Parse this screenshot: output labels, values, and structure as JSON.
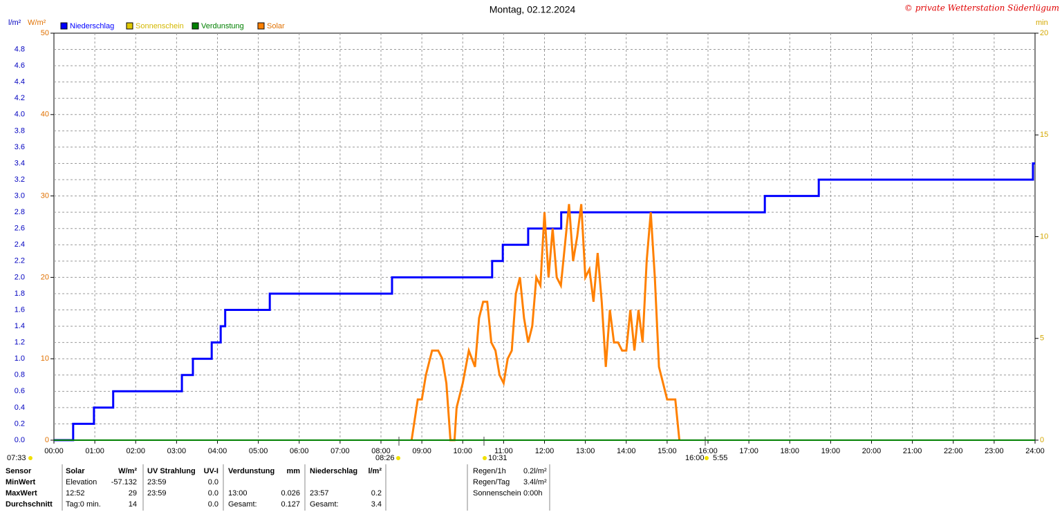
{
  "chart_data": {
    "type": "line",
    "title": "Montag, 02.12.2024",
    "copyright": "© private Wetterstation Süderlügum",
    "y_unit": "l/m²",
    "y2_unit": "W/m²",
    "y3_unit": "min",
    "legend": [
      {
        "name": "Niederschlag",
        "color": "#0000ff"
      },
      {
        "name": "Sonnenschein",
        "color": "#e0c800"
      },
      {
        "name": "Verdunstung",
        "color": "#008000"
      },
      {
        "name": "Solar",
        "color": "#ff8000"
      }
    ],
    "xlim": [
      0,
      24
    ],
    "xticks": [
      {
        "value": 0,
        "label": "00:00"
      },
      {
        "value": 1,
        "label": "01:00"
      },
      {
        "value": 2,
        "label": "02:00"
      },
      {
        "value": 3,
        "label": "03:00"
      },
      {
        "value": 4,
        "label": "04:00"
      },
      {
        "value": 5,
        "label": "05:00"
      },
      {
        "value": 6,
        "label": "06:00"
      },
      {
        "value": 7,
        "label": "07:00"
      },
      {
        "value": 8,
        "label": "08:00"
      },
      {
        "value": 9,
        "label": "09:00"
      },
      {
        "value": 10,
        "label": "10:00"
      },
      {
        "value": 11,
        "label": "11:00"
      },
      {
        "value": 12,
        "label": "12:00"
      },
      {
        "value": 13,
        "label": "13:00"
      },
      {
        "value": 14,
        "label": "14:00"
      },
      {
        "value": 15,
        "label": "15:00"
      },
      {
        "value": 16,
        "label": "16:00"
      },
      {
        "value": 17,
        "label": "17:00"
      },
      {
        "value": 18,
        "label": "18:00"
      },
      {
        "value": 19,
        "label": "19:00"
      },
      {
        "value": 20,
        "label": "20:00"
      },
      {
        "value": 21,
        "label": "21:00"
      },
      {
        "value": 22,
        "label": "22:00"
      },
      {
        "value": 23,
        "label": "23:00"
      },
      {
        "value": 24,
        "label": "24:00"
      }
    ],
    "ylim": [
      0,
      5
    ],
    "yticks": [
      {
        "value": 0,
        "label": "0.0"
      },
      {
        "value": 0.2,
        "label": "0.2"
      },
      {
        "value": 0.4,
        "label": "0.4"
      },
      {
        "value": 0.6,
        "label": "0.6"
      },
      {
        "value": 0.8,
        "label": "0.8"
      },
      {
        "value": 1,
        "label": "1.0"
      },
      {
        "value": 1.2,
        "label": "1.2"
      },
      {
        "value": 1.4,
        "label": "1.4"
      },
      {
        "value": 1.6,
        "label": "1.6"
      },
      {
        "value": 1.8,
        "label": "1.8"
      },
      {
        "value": 2,
        "label": "2.0"
      },
      {
        "value": 2.2,
        "label": "2.2"
      },
      {
        "value": 2.4,
        "label": "2.4"
      },
      {
        "value": 2.6,
        "label": "2.6"
      },
      {
        "value": 2.8,
        "label": "2.8"
      },
      {
        "value": 3,
        "label": "3.0"
      },
      {
        "value": 3.2,
        "label": "3.2"
      },
      {
        "value": 3.4,
        "label": "3.4"
      },
      {
        "value": 3.6,
        "label": "3.6"
      },
      {
        "value": 3.8,
        "label": "3.8"
      },
      {
        "value": 4,
        "label": "4.0"
      },
      {
        "value": 4.2,
        "label": "4.2"
      },
      {
        "value": 4.4,
        "label": "4.4"
      },
      {
        "value": 4.6,
        "label": "4.6"
      },
      {
        "value": 4.8,
        "label": "4.8"
      }
    ],
    "y2lim": [
      0,
      50
    ],
    "y2ticks": [
      0,
      10,
      20,
      30,
      40,
      50
    ],
    "y3lim": [
      0,
      20
    ],
    "y3ticks": [
      0,
      5,
      10,
      15,
      20
    ],
    "grid": true,
    "series": [
      {
        "name": "Niederschlag",
        "color": "#0000ff",
        "x": [
          0,
          0.47,
          0.47,
          0.98,
          0.98,
          1.45,
          1.45,
          3.13,
          3.13,
          3.4,
          3.4,
          3.86,
          3.86,
          4.08,
          4.08,
          4.19,
          4.19,
          5.28,
          5.28,
          8.27,
          8.27,
          10.72,
          10.72,
          10.98,
          10.98,
          11.6,
          11.6,
          12.41,
          12.41,
          17.39,
          17.39,
          18.71,
          18.71,
          23.95,
          23.95,
          24
        ],
        "values": [
          0,
          0,
          0.2,
          0.2,
          0.4,
          0.4,
          0.6,
          0.6,
          0.8,
          0.8,
          1,
          1,
          1.2,
          1.2,
          1.4,
          1.4,
          1.6,
          1.6,
          1.8,
          1.8,
          2,
          2,
          2.2,
          2.2,
          2.4,
          2.4,
          2.6,
          2.6,
          2.8,
          2.8,
          3,
          3,
          3.2,
          3.2,
          3.4,
          3.4
        ]
      },
      {
        "name": "Solar",
        "color": "#ff8000",
        "axis": "y2",
        "x": [
          8.75,
          8.9,
          9.0,
          9.1,
          9.25,
          9.4,
          9.5,
          9.6,
          9.7,
          9.8,
          9.85,
          10.0,
          10.15,
          10.3,
          10.4,
          10.5,
          10.6,
          10.7,
          10.8,
          10.9,
          11.0,
          11.1,
          11.2,
          11.3,
          11.4,
          11.5,
          11.6,
          11.7,
          11.8,
          11.9,
          12.0,
          12.1,
          12.2,
          12.3,
          12.4,
          12.5,
          12.6,
          12.7,
          12.8,
          12.9,
          13.0,
          13.1,
          13.2,
          13.3,
          13.4,
          13.5,
          13.6,
          13.7,
          13.8,
          13.9,
          14.0,
          14.1,
          14.2,
          14.3,
          14.4,
          14.5,
          14.6,
          14.7,
          14.8,
          14.9,
          15.0,
          15.1,
          15.2,
          15.3
        ],
        "values": [
          0,
          5,
          5,
          8,
          11,
          11,
          10,
          7,
          0,
          0,
          4,
          7,
          11,
          9,
          15,
          17,
          17,
          12,
          11,
          8,
          7,
          10,
          11,
          18,
          20,
          15,
          12,
          14,
          20,
          19,
          28,
          20,
          26,
          20,
          19,
          24,
          29,
          22,
          25,
          29,
          20,
          21,
          17,
          23,
          17,
          9,
          16,
          12,
          12,
          11,
          11,
          16,
          11,
          16,
          12,
          22,
          28,
          20,
          9,
          7,
          5,
          5,
          5,
          0
        ]
      },
      {
        "name": "Verdunstung",
        "color": "#008000",
        "x": [
          0,
          24
        ],
        "values": [
          0,
          0
        ]
      }
    ],
    "sun_annotations": [
      "07:33",
      "08:26",
      "10:31",
      "16:00",
      "5:55"
    ]
  },
  "stats_table": {
    "row_labels": [
      "Sensor",
      "MinWert",
      "MaxWert",
      "Durchschnitt"
    ],
    "sections": [
      {
        "header": [
          "Solar",
          "W/m²"
        ],
        "rows": [
          [
            "Elevation",
            "-57.132"
          ],
          [
            "12:52",
            "29"
          ],
          [
            "Tag:0 min.",
            "14"
          ]
        ]
      },
      {
        "header": [
          "UV Strahlung",
          "UV-I"
        ],
        "rows": [
          [
            "23:59",
            "0.0"
          ],
          [
            "23:59",
            "0.0"
          ],
          [
            "0.0"
          ]
        ]
      },
      {
        "header": [
          "Verdunstung",
          "mm"
        ],
        "rows": [
          [],
          [
            "13:00",
            "0.026"
          ],
          [
            "Gesamt:",
            "0.127"
          ]
        ]
      },
      {
        "header": [
          "Niederschlag",
          "l/m²"
        ],
        "rows": [
          [],
          [
            "23:57",
            "0.2"
          ],
          [
            "Gesamt:",
            "3.4"
          ]
        ]
      }
    ],
    "summary": [
      [
        "Regen/1h",
        "0.2l/m²"
      ],
      [
        "Regen/Tag",
        "3.4l/m²"
      ],
      [
        "Sonnenschein",
        "0:00h"
      ]
    ]
  }
}
